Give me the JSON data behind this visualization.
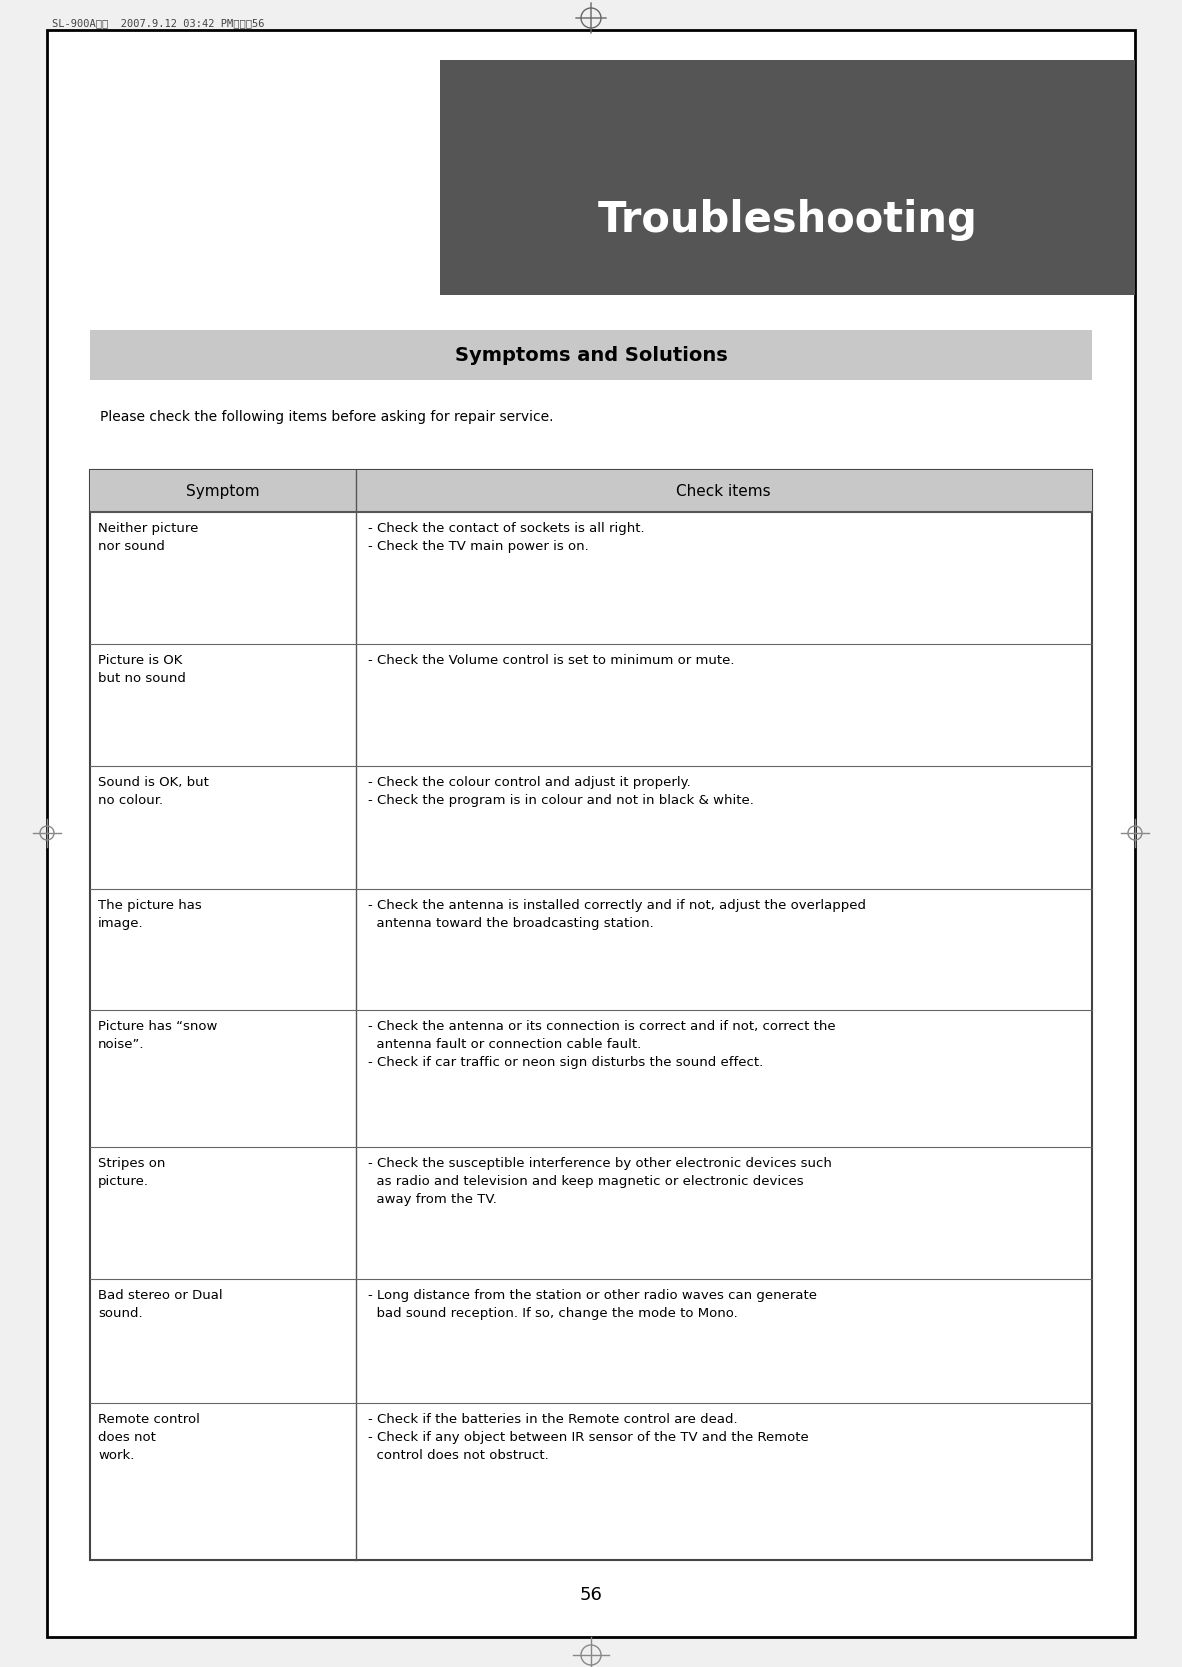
{
  "page_bg": "#f0f0f0",
  "inner_bg": "#ffffff",
  "outer_border_color": "#000000",
  "header_bg": "#555555",
  "header_text": "Troubleshooting",
  "header_text_color": "#ffffff",
  "subtitle_bg": "#c8c8c8",
  "subtitle_text": "Symptoms and Solutions",
  "subtitle_text_color": "#000000",
  "intro_text": "Please check the following items before asking for repair service.",
  "page_number": "56",
  "watermark_text": "SL-900A영어  2007.9.12 03:42 PM페이지56",
  "table_header_bg": "#c8c8c8",
  "table_header_symptom": "Symptom",
  "table_header_check": "Check items",
  "rows": [
    {
      "symptom": "Neither picture\nnor sound",
      "check_items": "- Check the contact of sockets is all right.\n- Check the TV main power is on."
    },
    {
      "symptom": "Picture is OK\nbut no sound",
      "check_items": "- Check the Volume control is set to minimum or mute."
    },
    {
      "symptom": "Sound is OK, but\nno colour.",
      "check_items": "- Check the colour control and adjust it properly.\n- Check the program is in colour and not in black & white."
    },
    {
      "symptom": "The picture has\nimage.",
      "check_items": "- Check the antenna is installed correctly and if not, adjust the overlapped\n  antenna toward the broadcasting station."
    },
    {
      "symptom": "Picture has “snow\nnoise”.",
      "check_items": "- Check the antenna or its connection is correct and if not, correct the\n  antenna fault or connection cable fault.\n- Check if car traffic or neon sign disturbs the sound effect."
    },
    {
      "symptom": "Stripes on\npicture.",
      "check_items": "- Check the susceptible interference by other electronic devices such\n  as radio and television and keep magnetic or electronic devices\n  away from the TV."
    },
    {
      "symptom": "Bad stereo or Dual\nsound.",
      "check_items": "- Long distance from the station or other radio waves can generate\n  bad sound reception. If so, change the mode to Mono."
    },
    {
      "symptom": "Remote control\ndoes not\nwork.",
      "check_items": "- Check if the batteries in the Remote control are dead.\n- Check if any object between IR sensor of the TV and the Remote\n  control does not obstruct."
    }
  ],
  "font_size_title": 30,
  "font_size_subtitle": 14,
  "font_size_intro": 10,
  "font_size_header": 11,
  "font_size_body": 9.5,
  "font_size_page": 13,
  "font_size_watermark": 7.5
}
